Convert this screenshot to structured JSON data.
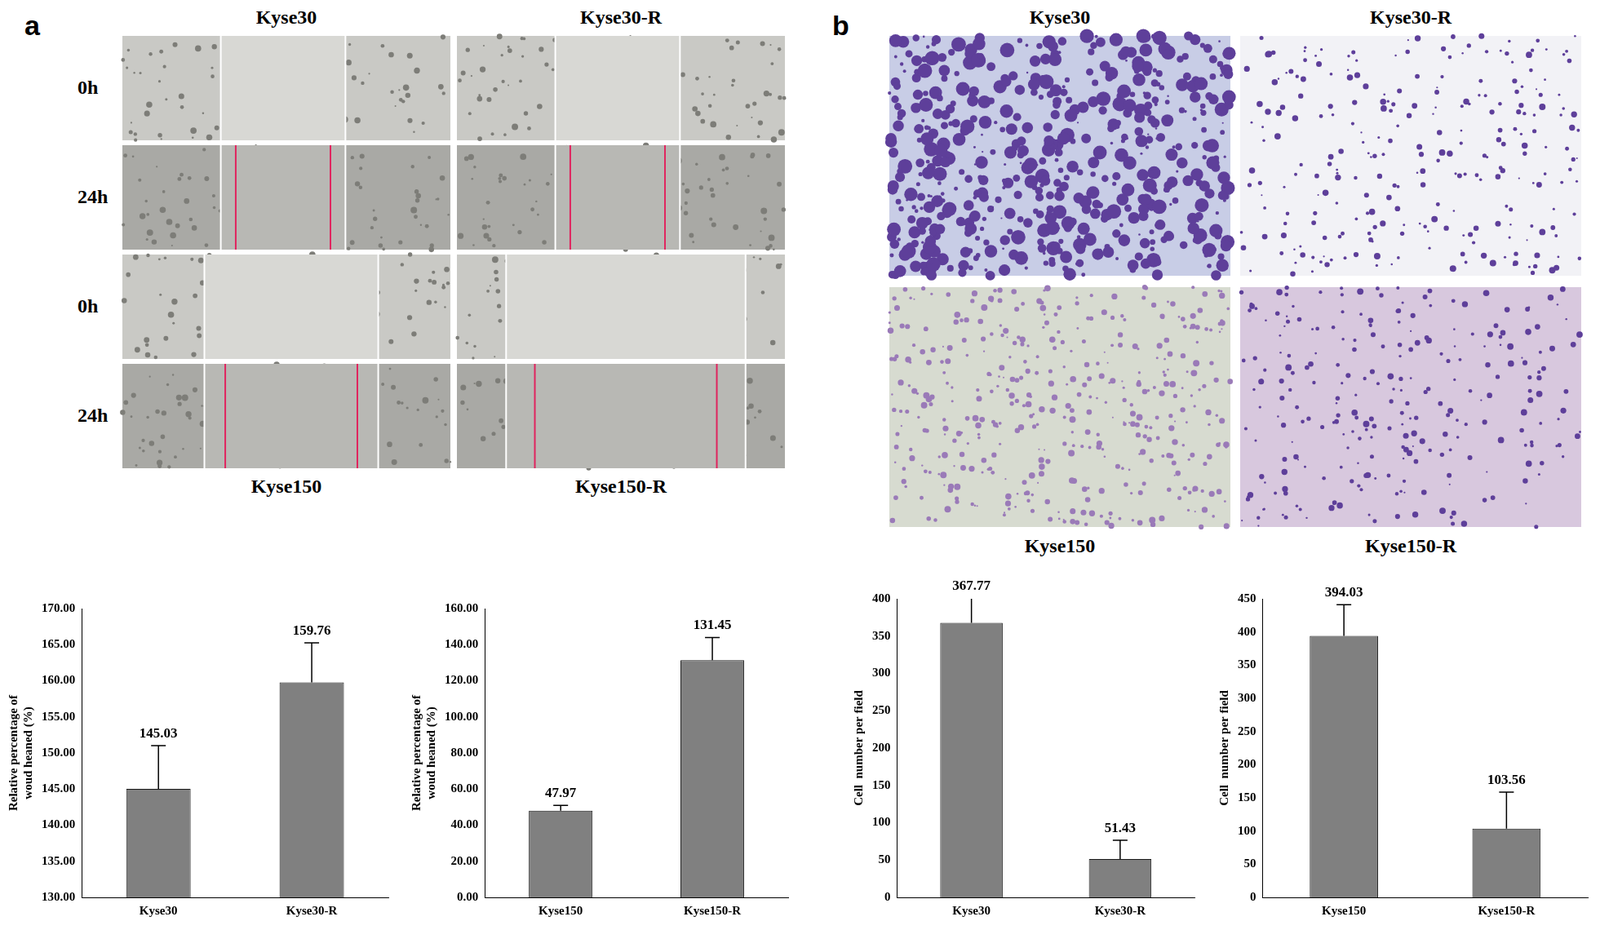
{
  "panels": {
    "a": {
      "label": "a",
      "column_labels_top": [
        "Kyse30",
        "Kyse30-R"
      ],
      "column_labels_bottom": [
        "Kyse150",
        "Kyse150-R"
      ],
      "row_labels": [
        "0h",
        "24h",
        "0h",
        "24h"
      ]
    },
    "b": {
      "label": "b",
      "column_labels_top": [
        "Kyse30",
        "Kyse30-R"
      ],
      "column_labels_bottom": [
        "Kyse150",
        "Kyse150-R"
      ]
    }
  },
  "chart_data": [
    {
      "type": "bar",
      "categories": [
        "Kyse30",
        "Kyse30-R"
      ],
      "values": [
        145.03,
        159.76
      ],
      "errors": [
        6,
        5.5
      ],
      "color": "#808080",
      "ylabel": [
        "Relative percentage of",
        "woud heaned (%)"
      ],
      "ylim": [
        130,
        170
      ],
      "yticks": [
        {
          "value": 130,
          "label": "130.00"
        },
        {
          "value": 135,
          "label": "135.00"
        },
        {
          "value": 140,
          "label": "140.00"
        },
        {
          "value": 145,
          "label": "145.00"
        },
        {
          "value": 150,
          "label": "150.00"
        },
        {
          "value": 155,
          "label": "155.00"
        },
        {
          "value": 160,
          "label": "160.00"
        },
        {
          "value": 165,
          "label": "165.00"
        },
        {
          "value": 170,
          "label": "170.00"
        }
      ],
      "grid": false,
      "data_labels": true
    },
    {
      "type": "bar",
      "categories": [
        "Kyse150",
        "Kyse150-R"
      ],
      "values": [
        47.97,
        131.45
      ],
      "errors": [
        3,
        12.5
      ],
      "color": "#808080",
      "ylabel": [
        "Relative percentage of",
        "woud heaned (%)"
      ],
      "ylim": [
        0,
        160
      ],
      "yticks": [
        {
          "value": 0,
          "label": "0.00"
        },
        {
          "value": 20,
          "label": "20.00"
        },
        {
          "value": 40,
          "label": "40.00"
        },
        {
          "value": 60,
          "label": "60.00"
        },
        {
          "value": 80,
          "label": "80.00"
        },
        {
          "value": 100,
          "label": "100.00"
        },
        {
          "value": 120,
          "label": "120.00"
        },
        {
          "value": 140,
          "label": "140.00"
        },
        {
          "value": 160,
          "label": "160.00"
        }
      ],
      "grid": false,
      "data_labels": true
    },
    {
      "type": "bar",
      "categories": [
        "Kyse30",
        "Kyse30-R"
      ],
      "values": [
        367.77,
        51.43
      ],
      "errors": [
        33,
        25
      ],
      "color": "#808080",
      "ylabel": "Cell  number per field",
      "ylim": [
        0,
        400
      ],
      "yticks": [
        0,
        50,
        100,
        150,
        200,
        250,
        300,
        350,
        400
      ],
      "grid": false,
      "data_labels": true
    },
    {
      "type": "bar",
      "categories": [
        "Kyse150",
        "Kyse150-R"
      ],
      "values": [
        394.03,
        103.56
      ],
      "errors": [
        47,
        55
      ],
      "color": "#808080",
      "ylabel": "Cell  number per field",
      "ylim": [
        0,
        450
      ],
      "yticks": [
        0,
        50,
        100,
        150,
        200,
        250,
        300,
        350,
        400,
        450
      ],
      "grid": false,
      "data_labels": true
    }
  ]
}
